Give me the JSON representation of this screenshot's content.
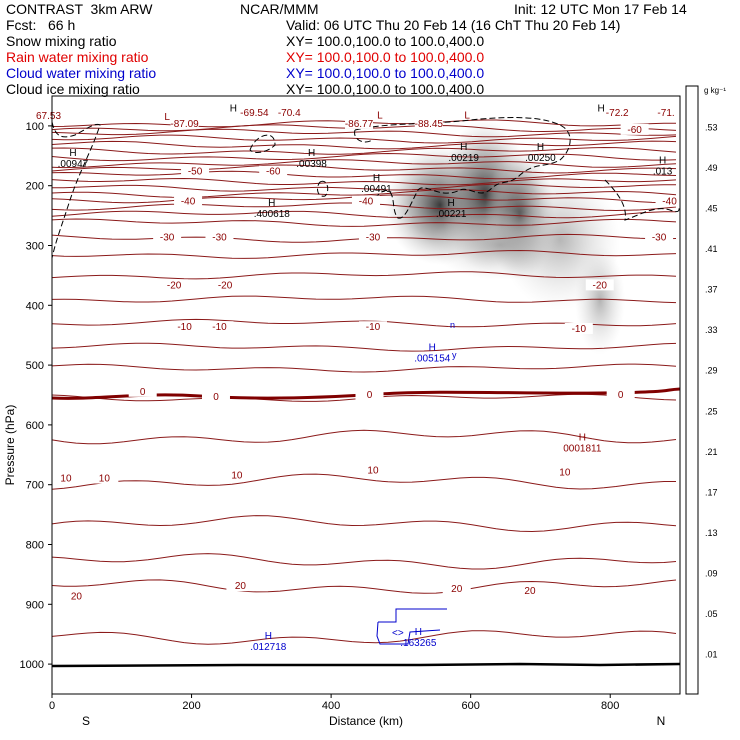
{
  "header": {
    "left_title": "CONTRAST  3km ARW",
    "center_title": "NCAR/MMM",
    "init": "Init: 12 UTC Mon 17 Feb 14",
    "fcst": "Fcst:   66 h",
    "valid": "Valid: 06 UTC Thu 20 Feb 14 (16 ChT Thu 20 Feb 14)"
  },
  "fields": [
    {
      "name": "Snow mixing ratio",
      "xy": "XY= 100.0,100.0 to 100.0,400.0",
      "color": "#000000"
    },
    {
      "name": "Rain water mixing ratio",
      "xy": "XY= 100.0,100.0 to 100.0,400.0",
      "color": "#e00000"
    },
    {
      "name": "Cloud water mixing ratio",
      "xy": "XY= 100.0,100.0 to 100.0,400.0",
      "color": "#0000cc"
    },
    {
      "name": "Cloud ice mixing ratio",
      "xy": "XY= 100.0,100.0 to 100.0,400.0",
      "color": "#000000"
    }
  ],
  "chart_data": {
    "type": "cross-section",
    "xlabel": "Distance (km)",
    "ylabel": "Pressure (hPa)",
    "x_ticks": [
      0,
      200,
      400,
      600,
      800
    ],
    "xlim": [
      0,
      900
    ],
    "y_ticks": [
      100,
      200,
      300,
      400,
      500,
      600,
      700,
      800,
      900,
      1000
    ],
    "ylim": [
      50,
      1050
    ],
    "x_end_labels": {
      "left": "S",
      "right": "N"
    },
    "colorbar": {
      "unit": "g kg⁻¹",
      "labels": [
        ".01",
        ".05",
        ".09",
        ".13",
        ".17",
        ".21",
        ".25",
        ".29",
        ".33",
        ".37",
        ".41",
        ".45",
        ".49",
        ".53"
      ]
    },
    "temperature_labels": [
      {
        "text": "67.53",
        "x": -5,
        "p": 87
      },
      {
        "text": "-87.09",
        "x": 190,
        "p": 100
      },
      {
        "text": "-69.54",
        "x": 290,
        "p": 82
      },
      {
        "text": "-70.4",
        "x": 340,
        "p": 82
      },
      {
        "text": "-86.77",
        "x": 440,
        "p": 100
      },
      {
        "text": "-88.45",
        "x": 540,
        "p": 100
      },
      {
        "text": "-72.2",
        "x": 810,
        "p": 82
      },
      {
        "text": "-71.",
        "x": 880,
        "p": 82
      },
      {
        "text": "-60",
        "x": 835,
        "p": 110
      },
      {
        "text": "-50",
        "x": 205,
        "p": 180
      },
      {
        "text": "-60",
        "x": 317,
        "p": 180
      },
      {
        "text": "-40",
        "x": 195,
        "p": 230
      },
      {
        "text": "-40",
        "x": 450,
        "p": 230
      },
      {
        "text": "-40",
        "x": 885,
        "p": 230
      },
      {
        "text": "-30",
        "x": 165,
        "p": 290
      },
      {
        "text": "-30",
        "x": 240,
        "p": 290
      },
      {
        "text": "-30",
        "x": 460,
        "p": 290
      },
      {
        "text": "-30",
        "x": 870,
        "p": 290
      },
      {
        "text": "-20",
        "x": 175,
        "p": 370
      },
      {
        "text": "-20",
        "x": 248,
        "p": 370
      },
      {
        "text": "-20",
        "x": 785,
        "p": 370
      },
      {
        "text": "-10",
        "x": 190,
        "p": 440
      },
      {
        "text": "-10",
        "x": 240,
        "p": 440
      },
      {
        "text": "-10",
        "x": 460,
        "p": 440
      },
      {
        "text": "-10",
        "x": 755,
        "p": 443
      },
      {
        "text": "0",
        "x": 130,
        "p": 548
      },
      {
        "text": "0",
        "x": 235,
        "p": 557
      },
      {
        "text": "0",
        "x": 455,
        "p": 553
      },
      {
        "text": "0",
        "x": 815,
        "p": 553
      },
      {
        "text": "10",
        "x": 20,
        "p": 693
      },
      {
        "text": "10",
        "x": 75,
        "p": 693
      },
      {
        "text": "10",
        "x": 265,
        "p": 688
      },
      {
        "text": "10",
        "x": 460,
        "p": 680
      },
      {
        "text": "10",
        "x": 735,
        "p": 683
      },
      {
        "text": "20",
        "x": 35,
        "p": 890
      },
      {
        "text": "20",
        "x": 270,
        "p": 873
      },
      {
        "text": "20",
        "x": 580,
        "p": 878
      },
      {
        "text": "20",
        "x": 685,
        "p": 881
      }
    ],
    "extrema": [
      {
        "kind": "L",
        "x": 165,
        "p": 90,
        "color": "#8b0000"
      },
      {
        "kind": "H",
        "x": 260,
        "p": 76,
        "color": "#000000"
      },
      {
        "kind": "L",
        "x": 470,
        "p": 88,
        "color": "#8b0000"
      },
      {
        "kind": "L",
        "x": 595,
        "p": 88,
        "color": "#8b0000"
      },
      {
        "kind": "H",
        "x": 787,
        "p": 76,
        "color": "#000000"
      },
      {
        "kind": "H",
        "x": 30,
        "p": 150,
        "label": ".00947",
        "color": "#000000"
      },
      {
        "kind": "H",
        "x": 372,
        "p": 150,
        "label": ".00398",
        "color": "#000000"
      },
      {
        "kind": "H",
        "x": 590,
        "p": 140,
        "label": ".00219",
        "color": "#000000"
      },
      {
        "kind": "H",
        "x": 700,
        "p": 140,
        "label": ".00250",
        "color": "#000000"
      },
      {
        "kind": "H",
        "x": 875,
        "p": 163,
        "label": ".013",
        "color": "#000000"
      },
      {
        "kind": "H",
        "x": 465,
        "p": 192,
        "label": ".00491",
        "color": "#000000"
      },
      {
        "kind": "H",
        "x": 572,
        "p": 234,
        "label": ".00221",
        "color": "#000000"
      },
      {
        "kind": "H",
        "x": 315,
        "p": 234,
        "label": ".400618",
        "color": "#000000"
      },
      {
        "kind": "H",
        "x": 545,
        "p": 476,
        "label": ".005154",
        "color": "#0000cc"
      },
      {
        "kind": "H",
        "x": 760,
        "p": 626,
        "label": "0001811",
        "color": "#8b0000"
      },
      {
        "kind": "H",
        "x": 310,
        "p": 958,
        "label": ".012718",
        "color": "#0000cc"
      },
      {
        "kind": "H",
        "x": 525,
        "p": 951,
        "label": ".163265",
        "color": "#0000cc"
      }
    ],
    "isotherm_levels_hpa": [
      96,
      104,
      112,
      122,
      132,
      142,
      152,
      163,
      172,
      182,
      193,
      203,
      213,
      222,
      235,
      248,
      262,
      288,
      315,
      350,
      390,
      430,
      470,
      505,
      555,
      620,
      695,
      765,
      828,
      870,
      955
    ]
  }
}
